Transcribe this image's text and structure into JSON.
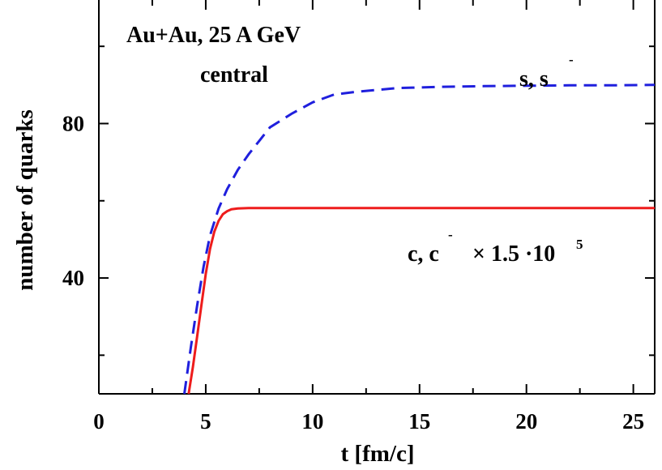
{
  "chart_data": {
    "type": "line",
    "xlabel": "t [fm/c]",
    "ylabel": "number of quarks",
    "xlim": [
      0,
      26
    ],
    "ylim": [
      10,
      112
    ],
    "x_ticks": [
      0,
      5,
      10,
      15,
      20,
      25
    ],
    "x_tick_labels": [
      "0",
      "5",
      "10",
      "15",
      "20",
      "25"
    ],
    "y_ticks": [
      40,
      80
    ],
    "y_tick_labels": [
      "40",
      "80"
    ],
    "grid": false,
    "annotations": {
      "system": "Au+Au,  25 A GeV",
      "centrality": "central",
      "s_label_main": "s, s",
      "s_label_bar": "-",
      "c_label_main": "c, c",
      "c_label_bar": "-",
      "c_label_factor": "× 1.5 ·10",
      "c_label_exp": "5"
    },
    "series": [
      {
        "label": "s, s̄",
        "color": "#1f1fdd",
        "dash": "dashed",
        "x": [
          4.0,
          4.3,
          4.6,
          4.9,
          5.2,
          5.6,
          6.0,
          6.5,
          7.0,
          7.5,
          8.0,
          9.0,
          10.0,
          11.0,
          12.0,
          13.0,
          14.0,
          16.0,
          18.0,
          20.0,
          22.0,
          24.0,
          26.0
        ],
        "y": [
          10,
          22,
          33,
          43,
          51,
          58,
          63,
          68,
          72,
          75.5,
          79,
          82.5,
          85.5,
          87.5,
          88.2,
          88.7,
          89.2,
          89.5,
          89.7,
          89.8,
          89.9,
          89.9,
          90.0
        ]
      },
      {
        "label": "c, c̄ × 1.5·10^5",
        "color": "#ee1c1c",
        "dash": "solid",
        "x": [
          4.2,
          4.4,
          4.6,
          4.8,
          5.0,
          5.2,
          5.4,
          5.6,
          5.8,
          6.0,
          6.2,
          6.5,
          7.0,
          8.0,
          10.0,
          15.0,
          20.0,
          26.0
        ],
        "y": [
          10,
          17,
          25,
          33,
          41,
          47.5,
          52,
          54.8,
          56.5,
          57.3,
          57.8,
          58.0,
          58.1,
          58.1,
          58.1,
          58.1,
          58.1,
          58.1
        ]
      }
    ]
  }
}
